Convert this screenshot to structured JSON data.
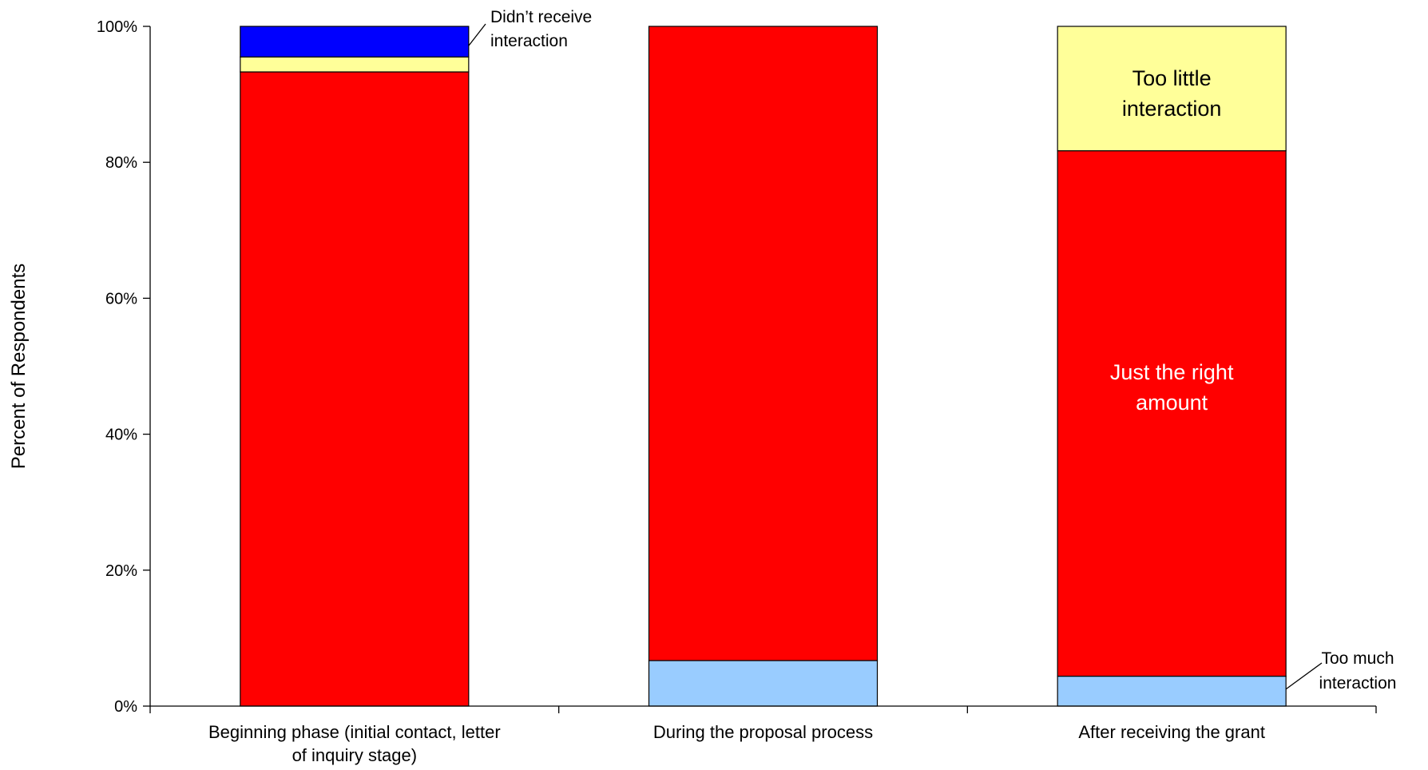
{
  "chart_data": {
    "type": "bar",
    "stacked": true,
    "title": "",
    "xlabel": "",
    "ylabel": "Percent of Respondents",
    "ylim": [
      0,
      100
    ],
    "yticks": [
      "0%",
      "20%",
      "40%",
      "60%",
      "80%",
      "100%"
    ],
    "categories": [
      [
        "Beginning phase (initial contact, letter",
        "of inquiry stage)"
      ],
      [
        "During the proposal process"
      ],
      [
        "After receiving the grant"
      ]
    ],
    "series": [
      {
        "name": "Too much interaction",
        "color": "#99CCFF",
        "values": [
          0,
          6.7,
          4.4
        ]
      },
      {
        "name": "Just the right amount",
        "color": "#FF0000",
        "values": [
          93.3,
          93.3,
          77.3
        ]
      },
      {
        "name": "Too little interaction",
        "color": "#FFFF99",
        "values": [
          2.2,
          0,
          18.3
        ]
      },
      {
        "name": "Didn't receive interaction",
        "color": "#0000FF",
        "values": [
          4.5,
          0,
          0
        ]
      }
    ],
    "annotations": [
      {
        "id": "didnt-receive",
        "lines": [
          "Didn’t receive",
          "interaction"
        ]
      },
      {
        "id": "too-much",
        "lines": [
          "Too much",
          "interaction"
        ]
      },
      {
        "id": "too-little",
        "lines": [
          "Too little",
          "interaction"
        ]
      },
      {
        "id": "just-right",
        "lines": [
          "Just the right",
          "amount"
        ]
      }
    ]
  }
}
